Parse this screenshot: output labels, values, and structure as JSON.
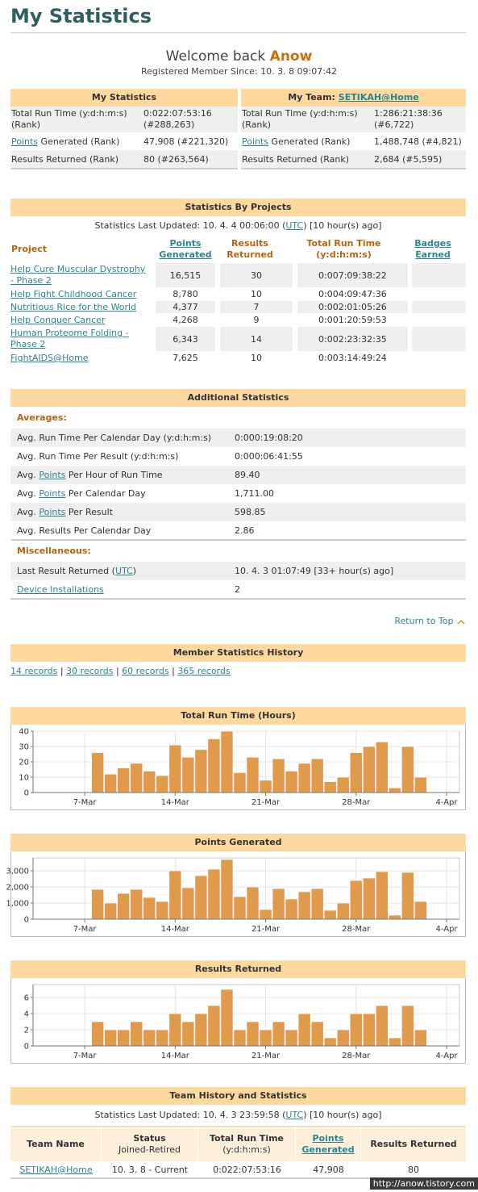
{
  "page_title": "My Statistics",
  "welcome": {
    "prefix": "Welcome back",
    "username": "Anow",
    "member_since": "Registered Member Since: 10. 3. 8 09:07:42"
  },
  "my_stats": {
    "header": "My Statistics",
    "rows": [
      {
        "label": "Total Run Time (y:d:h:m:s) (Rank)",
        "value": "0:022:07:53:16 (#288,263)"
      },
      {
        "link": "Points",
        "label": " Generated (Rank)",
        "value": "47,908 (#221,320)"
      },
      {
        "label": "Results Returned (Rank)",
        "value": "80 (#263,564)"
      }
    ]
  },
  "my_team": {
    "header_prefix": "My Team:",
    "team_link": "SETIKAH@Home",
    "rows": [
      {
        "label": "Total Run Time (y:d:h:m:s) (Rank)",
        "value": "1:286:21:38:36 (#6,722)"
      },
      {
        "link": "Points",
        "label": " Generated (Rank)",
        "value": "1,488,748 (#4,821)"
      },
      {
        "label": "Results Returned (Rank)",
        "value": "2,684 (#5,595)"
      }
    ]
  },
  "projects": {
    "header": "Statistics By Projects",
    "updated_prefix": "Statistics Last Updated: 10. 4. 4 00:06:00 (",
    "updated_link": "UTC",
    "updated_suffix": ") [10 hour(s) ago]",
    "columns": {
      "project": "Project",
      "points_l1": "Points",
      "points_l2": "Generated",
      "results_l1": "Results",
      "results_l2": "Returned",
      "runtime_l1": "Total Run Time",
      "runtime_l2": "(y:d:h:m:s)",
      "badges_l1": "Badges",
      "badges_l2": "Earned"
    },
    "rows": [
      {
        "name_l1": "Help Cure Muscular Dystrophy",
        "name_l2": "- Phase 2",
        "points": "16,515",
        "results": "30",
        "runtime": "0:007:09:38:22"
      },
      {
        "name_l1": "Help Fight Childhood Cancer",
        "name_l2": "",
        "points": "8,780",
        "results": "10",
        "runtime": "0:004:09:47:36"
      },
      {
        "name_l1": "Nutritious Rice for the World",
        "name_l2": "",
        "points": "4,377",
        "results": "7",
        "runtime": "0:002:01:05:26"
      },
      {
        "name_l1": "Help Conquer Cancer",
        "name_l2": "",
        "points": "4,268",
        "results": "9",
        "runtime": "0:001:20:59:53"
      },
      {
        "name_l1": "Human Proteome Folding -",
        "name_l2": "Phase 2",
        "points": "6,343",
        "results": "14",
        "runtime": "0:002:23:32:35"
      },
      {
        "name_l1": "FightAIDS@Home",
        "name_l2": "",
        "points": "7,625",
        "results": "10",
        "runtime": "0:003:14:49:24"
      }
    ]
  },
  "additional": {
    "header": "Additional Statistics",
    "averages_title": "Averages:",
    "averages": [
      {
        "pre": "Avg. Run Time Per Calendar Day (y:d:h:m:s)",
        "link": "",
        "post": "",
        "value": "0:000:19:08:20"
      },
      {
        "pre": "Avg. Run Time Per Result (y:d:h:m:s)",
        "link": "",
        "post": "",
        "value": "0:000:06:41:55"
      },
      {
        "pre": "Avg. ",
        "link": "Points",
        "post": " Per Hour of Run Time",
        "value": "89.40"
      },
      {
        "pre": "Avg. ",
        "link": "Points",
        "post": " Per Calendar Day",
        "value": "1,711.00"
      },
      {
        "pre": "Avg. ",
        "link": "Points",
        "post": " Per Result",
        "value": "598.85"
      },
      {
        "pre": "Avg. Results Per Calendar Day",
        "link": "",
        "post": "",
        "value": "2.86"
      }
    ],
    "misc_title": "Miscellaneous:",
    "last_result": {
      "pre": "Last Result Returned (",
      "link": "UTC",
      "post": ")",
      "value": "10. 4. 3 01:07:49 [33+ hour(s) ago]"
    },
    "device": {
      "link": "Device Installations",
      "value": "2"
    }
  },
  "return_to_top": "Return to Top",
  "history": {
    "header": "Member Statistics History",
    "links": [
      "14 records",
      "30 records",
      "60 records",
      "365 records"
    ],
    "separator": "|"
  },
  "charts_meta": {
    "bar_color": "#e09a4c"
  },
  "chart_data": [
    {
      "type": "bar",
      "title": "Total Run Time (Hours)",
      "x_tick_labels": [
        "7-Mar",
        "14-Mar",
        "21-Mar",
        "28-Mar",
        "4-Apr"
      ],
      "x_tick_days": [
        7,
        14,
        21,
        28,
        35
      ],
      "x_range_days": [
        3,
        36
      ],
      "days": [
        8,
        9,
        10,
        11,
        12,
        13,
        14,
        15,
        16,
        17,
        18,
        19,
        20,
        21,
        22,
        23,
        24,
        25,
        26,
        27,
        28,
        29,
        30,
        31,
        32,
        33,
        34,
        35
      ],
      "values": [
        26,
        12,
        16,
        19,
        14,
        11,
        31,
        23,
        28,
        35,
        40,
        13,
        23,
        8,
        22,
        14,
        19,
        22,
        7,
        10,
        26,
        30,
        33,
        3,
        30,
        10,
        0,
        0
      ],
      "ylim": [
        0,
        40
      ],
      "yticks": [
        0,
        10,
        20,
        30,
        40
      ],
      "ytick_labels": [
        "0",
        "10",
        "20",
        "30",
        "40"
      ],
      "grid": true
    },
    {
      "type": "bar",
      "title": "Points Generated",
      "x_tick_labels": [
        "7-Mar",
        "14-Mar",
        "21-Mar",
        "28-Mar",
        "4-Apr"
      ],
      "x_tick_days": [
        7,
        14,
        21,
        28,
        35
      ],
      "x_range_days": [
        3,
        36
      ],
      "days": [
        8,
        9,
        10,
        11,
        12,
        13,
        14,
        15,
        16,
        17,
        18,
        19,
        20,
        21,
        22,
        23,
        24,
        25,
        26,
        27,
        28,
        29,
        30,
        31,
        32,
        33,
        34,
        35
      ],
      "values": [
        1850,
        1000,
        1600,
        1850,
        1350,
        1100,
        3000,
        1950,
        2700,
        3100,
        3700,
        1400,
        2000,
        600,
        1900,
        1250,
        1700,
        1900,
        550,
        1000,
        2400,
        2550,
        2950,
        250,
        2900,
        1100,
        0,
        0
      ],
      "ylim": [
        0,
        3800
      ],
      "yticks": [
        0,
        1000,
        2000,
        3000
      ],
      "ytick_labels": [
        "0",
        "1,000",
        "2,000",
        "3,000"
      ],
      "grid": true
    },
    {
      "type": "bar",
      "title": "Results Returned",
      "x_tick_labels": [
        "7-Mar",
        "14-Mar",
        "21-Mar",
        "28-Mar",
        "4-Apr"
      ],
      "x_tick_days": [
        7,
        14,
        21,
        28,
        35
      ],
      "x_range_days": [
        3,
        36
      ],
      "days": [
        8,
        9,
        10,
        11,
        12,
        13,
        14,
        15,
        16,
        17,
        18,
        19,
        20,
        21,
        22,
        23,
        24,
        25,
        26,
        27,
        28,
        29,
        30,
        31,
        32,
        33,
        34,
        35
      ],
      "values": [
        3,
        2,
        2,
        3,
        2,
        2,
        4,
        3,
        4,
        5,
        7,
        2,
        3,
        2,
        3,
        2,
        4,
        3,
        1,
        2,
        4,
        4,
        5,
        1,
        5,
        2,
        0,
        0
      ],
      "ylim": [
        0,
        7.6
      ],
      "yticks": [
        0,
        2,
        4,
        6
      ],
      "ytick_labels": [
        "0",
        "2",
        "4",
        "6"
      ],
      "grid": true
    }
  ],
  "team_history": {
    "header": "Team History and Statistics",
    "updated_prefix": "Statistics Last Updated: 10. 4. 3 23:59:58 (",
    "updated_link": "UTC",
    "updated_suffix": ") [10 hour(s) ago]",
    "columns": {
      "team": "Team Name",
      "status_l1": "Status",
      "status_l2": "Joined-Retired",
      "runtime_l1": "Total Run Time",
      "runtime_l2": "(y:d:h:m:s)",
      "points_l1": "Points",
      "points_l2": "Generated",
      "results": "Results Returned"
    },
    "rows": [
      {
        "team": "SETIKAH@Home",
        "status": "10. 3. 8 - Current",
        "runtime": "0:022:07:53:16",
        "points": "47,908",
        "results": "80"
      }
    ]
  },
  "watermark": "http://anow.tistory.com"
}
